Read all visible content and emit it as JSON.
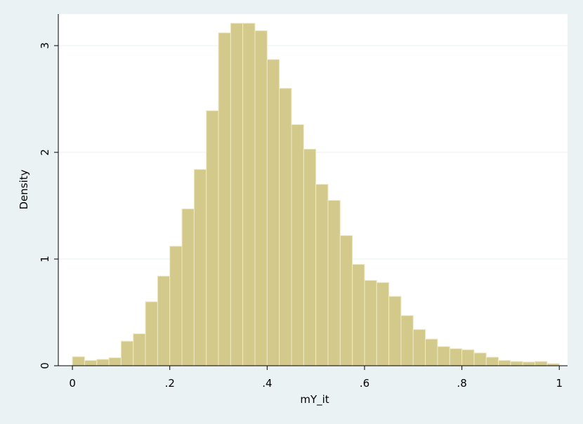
{
  "chart_data": {
    "type": "histogram",
    "x_label": "mY_it",
    "y_label": "Density",
    "bins": [
      0,
      0.025,
      0.05,
      0.075,
      0.1,
      0.125,
      0.15,
      0.175,
      0.2,
      0.225,
      0.25,
      0.275,
      0.3,
      0.325,
      0.35,
      0.375,
      0.4,
      0.425,
      0.45,
      0.475,
      0.5,
      0.525,
      0.55,
      0.575,
      0.6,
      0.625,
      0.65,
      0.675,
      0.7,
      0.725,
      0.75,
      0.775,
      0.8,
      0.825,
      0.85,
      0.875,
      0.9,
      0.925,
      0.95,
      0.975,
      1
    ],
    "values": [
      0.085,
      0.05,
      0.06,
      0.075,
      0.23,
      0.3,
      0.6,
      0.84,
      1.12,
      1.47,
      1.84,
      2.39,
      3.12,
      3.21,
      3.21,
      3.14,
      2.87,
      2.6,
      2.26,
      2.03,
      1.7,
      1.55,
      1.22,
      0.95,
      0.8,
      0.78,
      0.65,
      0.47,
      0.34,
      0.25,
      0.18,
      0.16,
      0.15,
      0.12,
      0.08,
      0.05,
      0.04,
      0.035,
      0.04,
      0.02
    ],
    "color": "#d3c98a",
    "xlim": [
      -0.029,
      1.017
    ],
    "ylim": [
      0,
      3.296
    ],
    "xticks": [
      0,
      {
        "value": 0.2,
        "label": ".2"
      },
      {
        "value": 0.4,
        "label": ".4"
      },
      {
        "value": 0.6,
        "label": ".6"
      },
      {
        "value": 0.8,
        "label": ".8"
      },
      1
    ],
    "yticks": [
      0,
      1,
      2,
      3
    ],
    "grid": true
  }
}
